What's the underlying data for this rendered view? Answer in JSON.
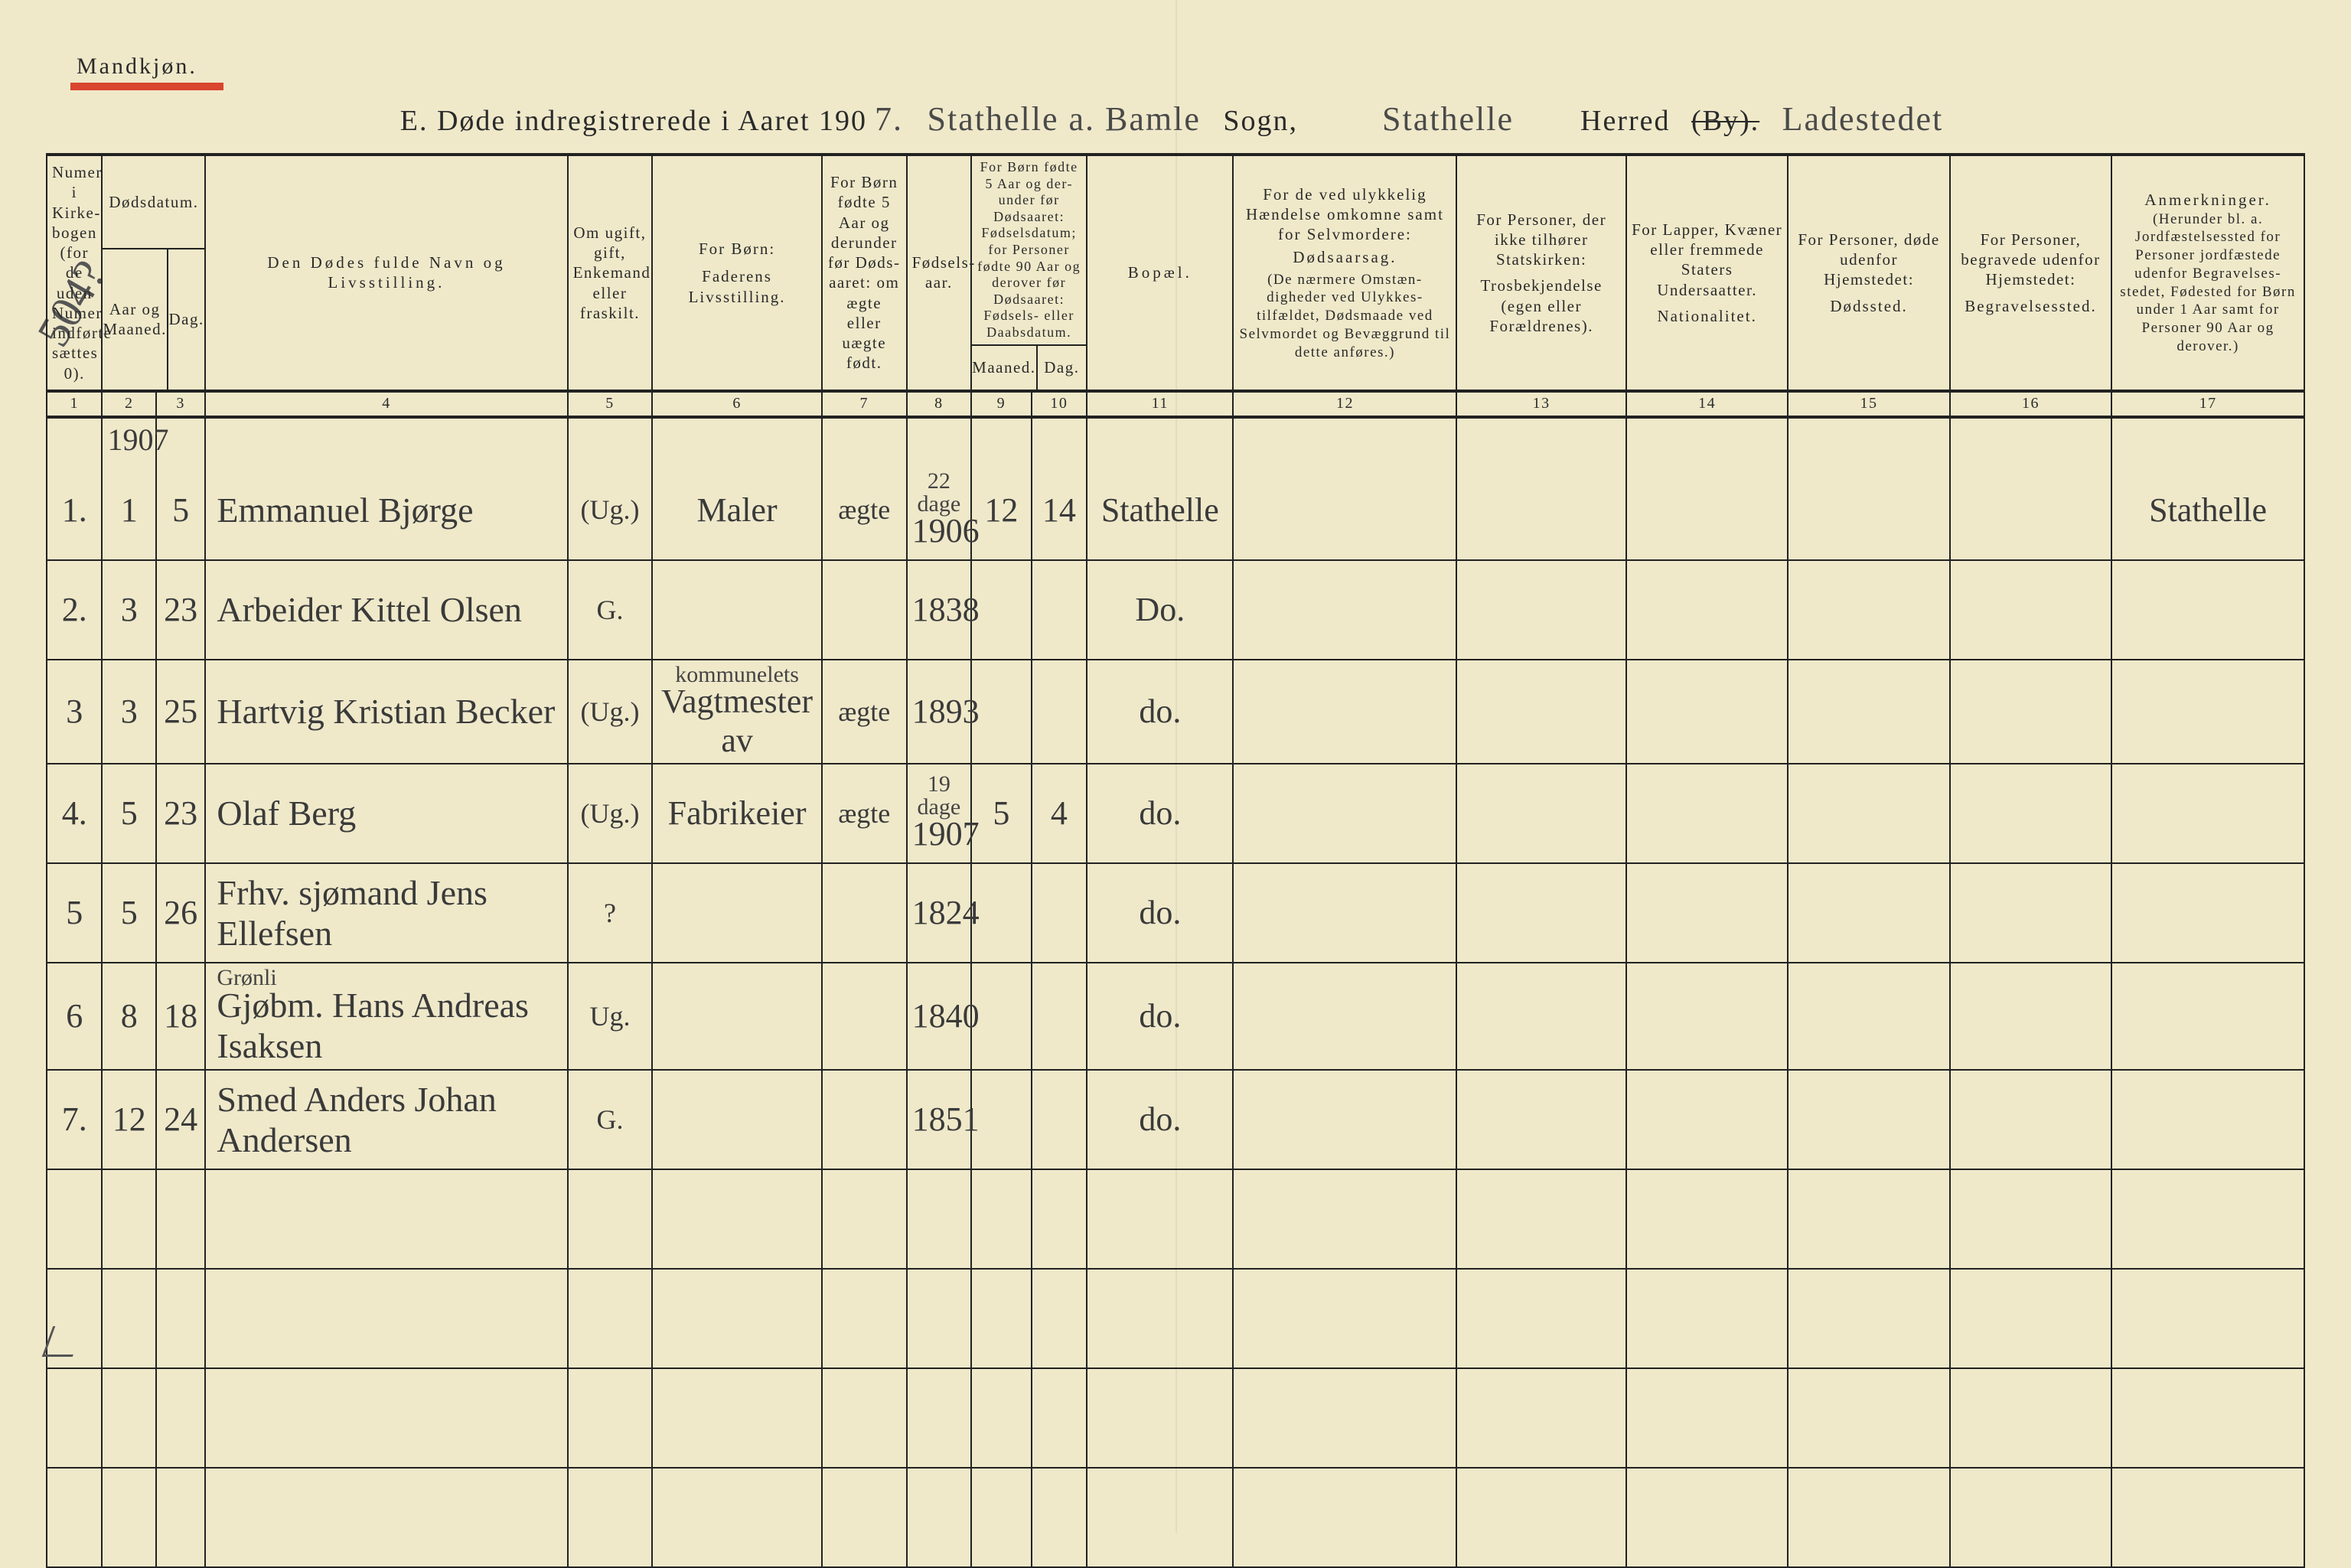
{
  "page": {
    "gender_label": "Mandkjøn.",
    "title_prefix": "E.   Døde indregistrerede i Aaret 190",
    "year_suffix_hand": "7.",
    "parish_hand": "Stathelle a. Bamle",
    "parish_label": "Sogn,",
    "district_hand": "Stathelle",
    "herred_label": "Herred",
    "by_label": "(By).",
    "by_hand": "Ladestedet",
    "side_note": "504?",
    "background_color": "#efe9ca",
    "line_color": "#222222",
    "red_underline_color": "#d9452e",
    "title_fontsize": 38,
    "header_fontsize": 21,
    "hand_fontsize": 44
  },
  "columns": {
    "c1": "Numer i Kirke-\nbogen (for de uden Numer indførte sættes 0).",
    "c2_top": "Dødsdatum.",
    "c2_aar": "Aar og Maaned.",
    "c2_dag": "Dag.",
    "c4": "Den Dødes fulde Navn og Livsstilling.",
    "c5": "Om ugift, gift, Enkemand eller fraskilt.",
    "c6_top": "For Børn:",
    "c6": "Faderens Livsstilling.",
    "c7": "For Børn fødte 5 Aar og derunder før Døds-aaret: om ægte eller uægte født.",
    "c8": "Fødsels-aar.",
    "c9_top": "For Børn fødte 5 Aar og der-under før Dødsaaret: Fødselsdatum; for Personer fødte 90 Aar og derover før Dødsaaret: Fødsels- eller Daabsdatum.",
    "c9_m": "Maaned.",
    "c9_d": "Dag.",
    "c11": "Bopæl.",
    "c12_top": "For de ved ulykkelig Hændelse omkomne samt for Selvmordere:",
    "c12_mid": "Dødsaarsag.",
    "c12_bot": "(De nærmere Omstæn-digheder ved Ulykkes-tilfældet, Dødsmaade ved Selvmordet og Bevæggrund til dette anføres.)",
    "c13_top": "For Personer, der ikke tilhører Statskirken:",
    "c13_bot": "Trosbekjendelse (egen eller Forældrenes).",
    "c14_top": "For Lapper, Kvæner eller fremmede Staters Undersaatter.",
    "c14_bot": "Nationalitet.",
    "c15_top": "For Personer, døde udenfor Hjemstedet:",
    "c15_bot": "Dødssted.",
    "c16_top": "For Personer, begravede udenfor Hjemstedet:",
    "c16_bot": "Begravelsessted.",
    "c17_top": "Anmerkninger.",
    "c17_bot": "(Herunder bl. a. Jordfæstelsessted for Personer jordfæstede udenfor Begravelses-stedet, Fødested for Børn under 1 Aar samt for Personer 90 Aar og derover.)"
  },
  "colnums": [
    "1",
    "2",
    "3",
    "4",
    "5",
    "6",
    "7",
    "8",
    "9",
    "10",
    "11",
    "12",
    "13",
    "14",
    "15",
    "16",
    "17"
  ],
  "year_row": "1907",
  "rows": [
    {
      "num": "1.",
      "mon": "1",
      "day": "5",
      "name": "Emmanuel Bjørge",
      "civil": "(Ug.)",
      "father": "Maler",
      "legit": "ægte",
      "byr_note": "22 dage",
      "byr": "1906",
      "bm": "12",
      "bd": "14",
      "res": "Stathelle",
      "remark": "Stathelle"
    },
    {
      "num": "2.",
      "mon": "3",
      "day": "23",
      "name": "Arbeider Kittel Olsen",
      "civil": "G.",
      "father": "",
      "legit": "",
      "byr_note": "",
      "byr": "1838",
      "bm": "",
      "bd": "",
      "res": "Do.",
      "remark": ""
    },
    {
      "num": "3",
      "mon": "3",
      "day": "25",
      "name": "Hartvig Kristian Becker",
      "civil": "(Ug.)",
      "father_sup": "kommunelets",
      "father": "Vagtmester av",
      "legit": "ægte",
      "byr_note": "",
      "byr": "1893",
      "bm": "",
      "bd": "",
      "res": "do.",
      "remark": ""
    },
    {
      "num": "4.",
      "mon": "5",
      "day": "23",
      "name": "Olaf Berg",
      "civil": "(Ug.)",
      "father": "Fabrikeier",
      "legit": "ægte",
      "byr_note": "19 dage",
      "byr": "1907",
      "bm": "5",
      "bd": "4",
      "res": "do.",
      "remark": ""
    },
    {
      "num": "5",
      "mon": "5",
      "day": "26",
      "name": "Frhv. sjømand Jens Ellefsen",
      "civil": "?",
      "father": "",
      "legit": "",
      "byr_note": "",
      "byr": "1824",
      "bm": "",
      "bd": "",
      "res": "do.",
      "remark": ""
    },
    {
      "num": "6",
      "mon": "8",
      "day": "18",
      "name_sup": "Grønli",
      "name": "Gjøbm. Hans Andreas Isaksen",
      "civil": "Ug.",
      "father": "",
      "legit": "",
      "byr_note": "",
      "byr": "1840",
      "bm": "",
      "bd": "",
      "res": "do.",
      "remark": ""
    },
    {
      "num": "7.",
      "mon": "12",
      "day": "24",
      "name": "Smed Anders Johan Andersen",
      "civil": "G.",
      "father": "",
      "legit": "",
      "byr_note": "",
      "byr": "1851",
      "bm": "",
      "bd": "",
      "res": "do.",
      "remark": ""
    }
  ],
  "blank_rows": 4
}
